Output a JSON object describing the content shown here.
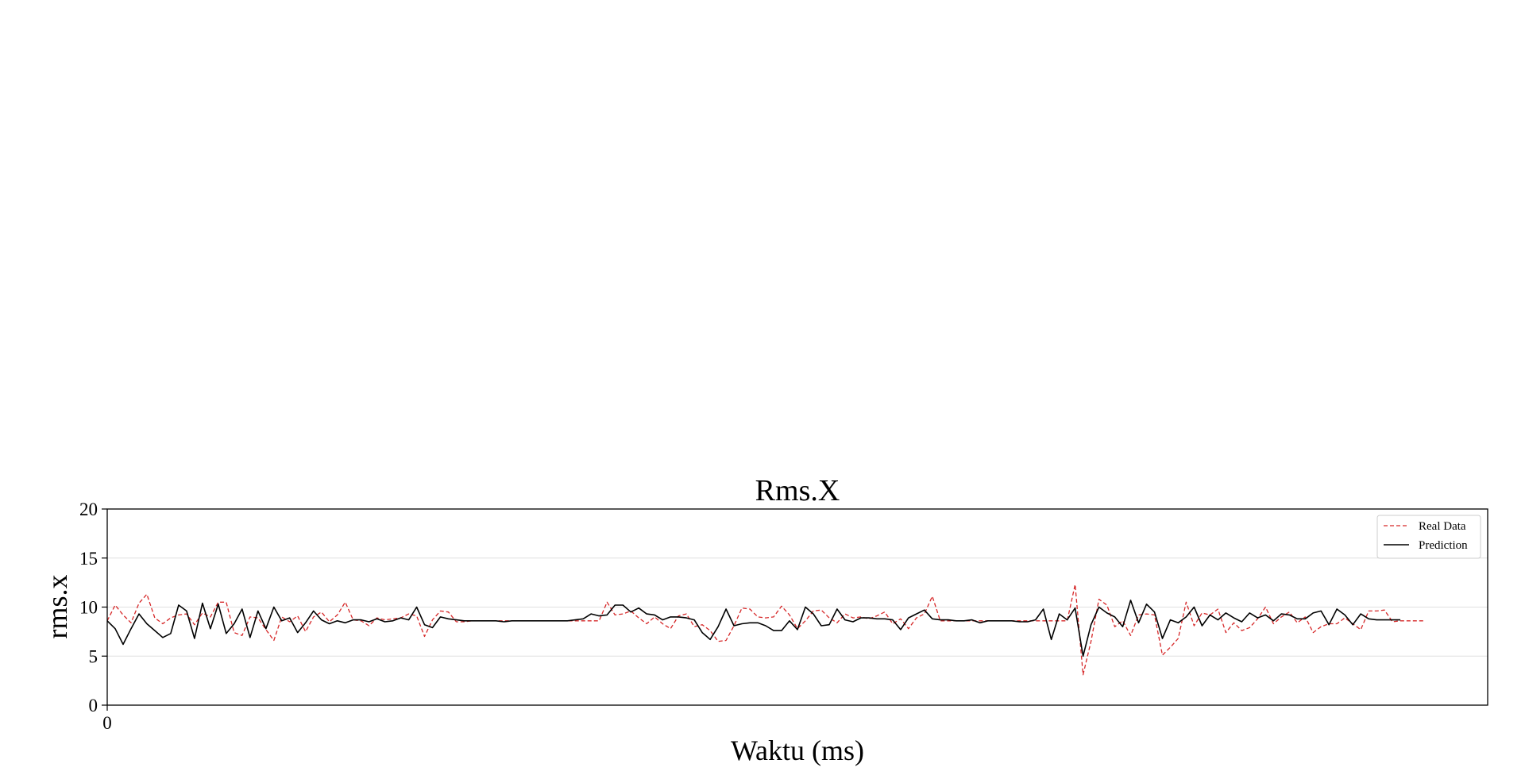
{
  "chart_data": {
    "type": "line",
    "title": "Rms.X",
    "xlabel": "Waktu (ms)",
    "ylabel": "rms.x",
    "xlim": [
      0,
      174
    ],
    "ylim": [
      0,
      20
    ],
    "yticks": [
      0,
      5,
      10,
      15,
      20
    ],
    "xticks": [
      0
    ],
    "grid": "horizontal",
    "legend_position": "top-right",
    "series": [
      {
        "name": "Real Data",
        "color": "#d62728",
        "style": "dashed",
        "values": [
          8.6,
          10.2,
          9.2,
          8.4,
          10.4,
          11.3,
          8.9,
          8.3,
          8.9,
          9.2,
          9.3,
          8.2,
          9.4,
          9.0,
          10.5,
          10.5,
          7.4,
          7.1,
          9.0,
          8.9,
          7.7,
          6.6,
          9.0,
          8.5,
          9.1,
          7.5,
          9.0,
          9.5,
          8.5,
          9.2,
          10.5,
          8.7,
          8.6,
          8.1,
          8.9,
          8.7,
          8.8,
          8.9,
          9.3,
          9.1,
          7.0,
          8.7,
          9.6,
          9.5,
          8.5,
          8.5,
          8.6,
          8.6,
          8.6,
          8.6,
          8.6,
          8.6,
          8.6,
          8.6,
          8.6,
          8.6,
          8.6,
          8.6,
          8.6,
          8.6,
          8.6,
          8.6,
          8.6,
          10.5,
          9.2,
          9.3,
          9.6,
          8.9,
          8.3,
          9.0,
          8.3,
          7.8,
          9.1,
          9.3,
          8.0,
          8.2,
          7.6,
          6.5,
          6.6,
          8.1,
          9.9,
          9.8,
          9.0,
          8.9,
          9.0,
          10.1,
          9.2,
          7.8,
          8.6,
          9.6,
          9.7,
          8.9,
          8.4,
          9.3,
          8.9,
          9.0,
          8.8,
          9.1,
          9.5,
          8.3,
          8.8,
          7.8,
          8.9,
          9.3,
          11.1,
          8.6,
          8.6,
          8.6,
          8.6,
          8.6,
          8.6,
          8.6,
          8.6,
          8.6,
          8.6,
          8.6,
          8.6,
          8.6,
          8.6,
          8.6,
          8.6,
          8.6,
          12.3,
          3.1,
          6.5,
          10.8,
          10.2,
          8.0,
          8.6,
          7.1,
          9.2,
          9.3,
          9.2,
          5.1,
          5.9,
          6.8,
          10.5,
          8.1,
          9.4,
          9.2,
          9.8,
          7.4,
          8.4,
          7.6,
          7.9,
          8.8,
          10.0,
          8.3,
          9.0,
          9.5,
          8.4,
          9.0,
          7.4,
          8.0,
          8.3,
          8.3,
          8.9,
          8.3,
          7.7,
          9.6,
          9.6,
          9.7,
          8.5,
          8.6,
          8.6,
          8.6,
          8.6
        ]
      },
      {
        "name": "Prediction",
        "color": "#000000",
        "style": "solid",
        "values": [
          8.6,
          7.8,
          6.2,
          7.8,
          9.3,
          8.3,
          7.6,
          6.9,
          7.3,
          10.2,
          9.6,
          6.8,
          10.4,
          7.8,
          10.3,
          7.3,
          8.3,
          9.8,
          6.9,
          9.6,
          7.8,
          10.0,
          8.6,
          8.9,
          7.4,
          8.4,
          9.6,
          8.7,
          8.3,
          8.6,
          8.4,
          8.7,
          8.7,
          8.5,
          8.8,
          8.5,
          8.6,
          8.9,
          8.7,
          10.0,
          8.2,
          7.9,
          9.0,
          8.8,
          8.7,
          8.6,
          8.6,
          8.6,
          8.6,
          8.6,
          8.5,
          8.6,
          8.6,
          8.6,
          8.6,
          8.6,
          8.6,
          8.6,
          8.6,
          8.7,
          8.8,
          9.3,
          9.1,
          9.2,
          10.2,
          10.2,
          9.5,
          9.9,
          9.3,
          9.2,
          8.7,
          9.0,
          9.0,
          8.9,
          8.7,
          7.4,
          6.7,
          8.0,
          9.8,
          8.1,
          8.3,
          8.4,
          8.4,
          8.1,
          7.6,
          7.6,
          8.6,
          7.7,
          10.0,
          9.3,
          8.1,
          8.2,
          9.8,
          8.7,
          8.5,
          8.9,
          8.9,
          8.8,
          8.8,
          8.7,
          7.7,
          8.9,
          9.3,
          9.7,
          8.8,
          8.7,
          8.7,
          8.6,
          8.6,
          8.7,
          8.4,
          8.6,
          8.6,
          8.6,
          8.6,
          8.5,
          8.5,
          8.7,
          9.8,
          6.7,
          9.3,
          8.7,
          9.9,
          5.0,
          8.2,
          10.0,
          9.4,
          9.0,
          8.0,
          10.7,
          8.4,
          10.3,
          9.5,
          6.8,
          8.7,
          8.4,
          9.0,
          10.0,
          8.1,
          9.2,
          8.7,
          9.4,
          8.9,
          8.5,
          9.4,
          8.9,
          9.2,
          8.6,
          9.3,
          9.2,
          8.8,
          8.8,
          9.4,
          9.6,
          8.2,
          9.8,
          9.2,
          8.2,
          9.3,
          8.8,
          8.7,
          8.7,
          8.7,
          8.7
        ]
      }
    ]
  }
}
